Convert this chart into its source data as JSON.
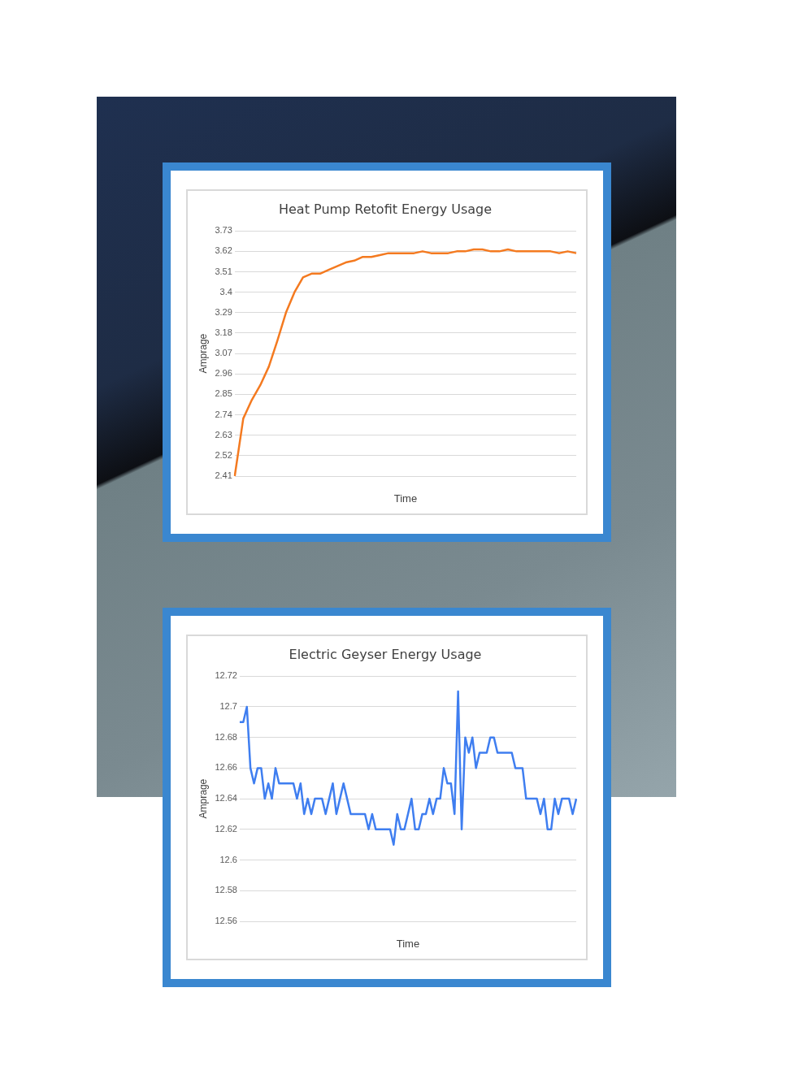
{
  "chart_data": [
    {
      "type": "line",
      "title": "Heat Pump Retofit Energy Usage",
      "xlabel": "Time",
      "ylabel": "Amprage",
      "grid": "y",
      "categories": [
        null,
        null,
        null,
        null,
        null,
        null,
        null,
        null,
        null,
        null,
        null,
        null,
        null,
        null,
        null,
        null,
        null,
        null,
        null,
        null,
        null,
        null,
        null,
        null,
        null,
        null,
        null,
        null,
        null,
        null,
        null,
        null,
        null,
        null,
        null,
        null,
        null,
        null,
        null,
        null,
        null
      ],
      "series": [
        {
          "color": "#f47a20",
          "values": [
            2.41,
            2.72,
            2.82,
            2.9,
            3.0,
            3.14,
            3.29,
            3.4,
            3.48,
            3.5,
            3.5,
            3.52,
            3.54,
            3.56,
            3.57,
            3.59,
            3.59,
            3.6,
            3.61,
            3.61,
            3.61,
            3.61,
            3.62,
            3.61,
            3.61,
            3.61,
            3.62,
            3.62,
            3.63,
            3.63,
            3.62,
            3.62,
            3.63,
            3.62,
            3.62,
            3.62,
            3.62,
            3.62,
            3.61,
            3.62,
            3.61
          ]
        }
      ],
      "ylim": [
        2.41,
        3.73
      ],
      "yticks": [
        2.41,
        2.52,
        2.63,
        2.74,
        2.85,
        2.96,
        3.07,
        3.18,
        3.29,
        3.4,
        3.51,
        3.62,
        3.73
      ]
    },
    {
      "type": "line",
      "title": "Electric Geyser Energy Usage",
      "xlabel": "Time",
      "ylabel": "Amprage",
      "grid": "y",
      "categories": [
        null,
        null,
        null,
        null,
        null,
        null,
        null,
        null,
        null,
        null,
        null,
        null,
        null,
        null,
        null,
        null,
        null,
        null,
        null,
        null,
        null,
        null,
        null,
        null,
        null,
        null,
        null,
        null,
        null,
        null,
        null,
        null,
        null,
        null,
        null,
        null,
        null,
        null,
        null,
        null,
        null,
        null,
        null,
        null,
        null,
        null,
        null,
        null,
        null,
        null,
        null,
        null,
        null,
        null,
        null,
        null,
        null,
        null,
        null,
        null,
        null,
        null,
        null,
        null,
        null,
        null,
        null,
        null,
        null,
        null,
        null,
        null,
        null,
        null,
        null,
        null,
        null,
        null,
        null,
        null,
        null,
        null,
        null,
        null,
        null,
        null,
        null,
        null,
        null,
        null,
        null,
        null,
        null,
        null,
        null
      ],
      "series": [
        {
          "color": "#3f7ef0",
          "values": [
            12.69,
            12.69,
            12.7,
            12.66,
            12.65,
            12.66,
            12.66,
            12.64,
            12.65,
            12.64,
            12.66,
            12.65,
            12.65,
            12.65,
            12.65,
            12.65,
            12.64,
            12.65,
            12.63,
            12.64,
            12.63,
            12.64,
            12.64,
            12.64,
            12.63,
            12.64,
            12.65,
            12.63,
            12.64,
            12.65,
            12.64,
            12.63,
            12.63,
            12.63,
            12.63,
            12.63,
            12.62,
            12.63,
            12.62,
            12.62,
            12.62,
            12.62,
            12.62,
            12.61,
            12.63,
            12.62,
            12.62,
            12.63,
            12.64,
            12.62,
            12.62,
            12.63,
            12.63,
            12.64,
            12.63,
            12.64,
            12.64,
            12.66,
            12.65,
            12.65,
            12.63,
            12.71,
            12.62,
            12.68,
            12.67,
            12.68,
            12.66,
            12.67,
            12.67,
            12.67,
            12.68,
            12.68,
            12.67,
            12.67,
            12.67,
            12.67,
            12.67,
            12.66,
            12.66,
            12.66,
            12.64,
            12.64,
            12.64,
            12.64,
            12.63,
            12.64,
            12.62,
            12.62,
            12.64,
            12.63,
            12.64,
            12.64,
            12.64,
            12.63,
            12.64
          ]
        }
      ],
      "ylim": [
        12.56,
        12.72
      ],
      "yticks": [
        12.56,
        12.58,
        12.6,
        12.62,
        12.64,
        12.66,
        12.68,
        12.7,
        12.72
      ]
    }
  ]
}
